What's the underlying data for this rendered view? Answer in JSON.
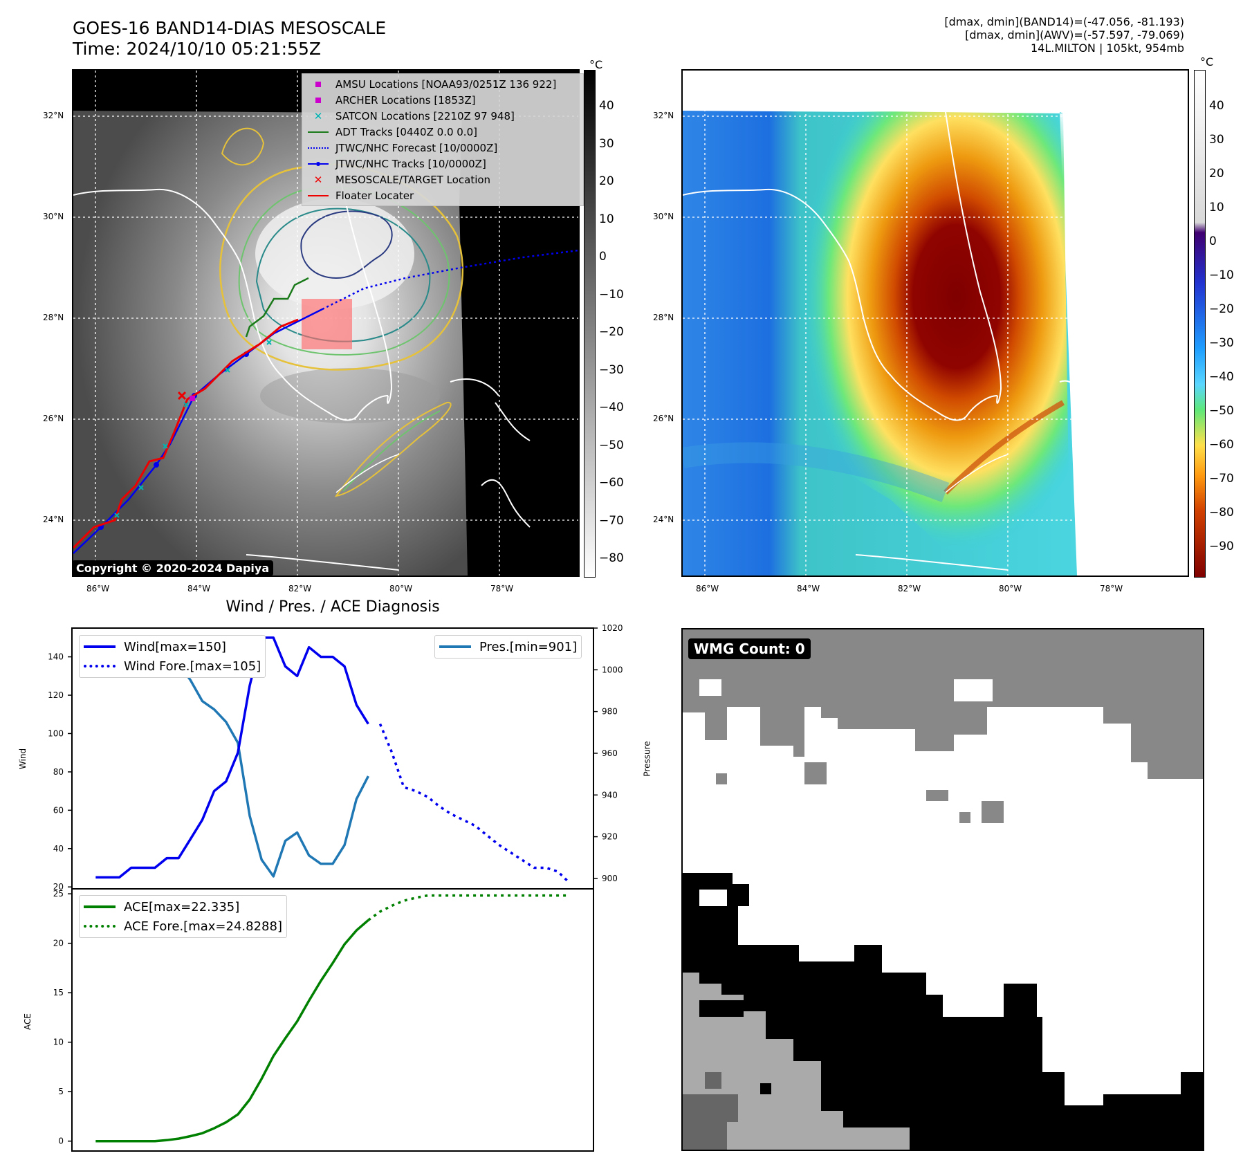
{
  "header": {
    "title_line1": "GOES-16 BAND14-DIAS MESOSCALE",
    "title_line2": "Time: 2024/10/10 05:21:55Z",
    "info_line1": "[dmax, dmin](BAND14)=(-47.056, -81.193)",
    "info_line2": "[dmax, dmin](AWV)=(-57.597, -79.069)",
    "info_line3": "14L.MILTON | 105kt, 954mb"
  },
  "map_axes": {
    "lat_labels": [
      "32°N",
      "30°N",
      "28°N",
      "26°N",
      "24°N"
    ],
    "lon_labels": [
      "86°W",
      "84°W",
      "82°W",
      "80°W",
      "78°W"
    ]
  },
  "colorbars": {
    "unit": "°C",
    "gray_ticks": [
      "40",
      "30",
      "20",
      "10",
      "0",
      "−10",
      "−20",
      "−30",
      "−40",
      "−50",
      "−60",
      "−70",
      "−80"
    ],
    "color_ticks": [
      "40",
      "30",
      "20",
      "10",
      "0",
      "−10",
      "−20",
      "−30",
      "−40",
      "−50",
      "−60",
      "−70",
      "−80",
      "−90"
    ]
  },
  "map_legend": {
    "items": [
      {
        "label": "AMSU Locations [NOAA93/0251Z 136 922]",
        "color": "#cc00cc",
        "symbol": "square"
      },
      {
        "label": "ARCHER Locations [1853Z]",
        "color": "#cc00cc",
        "symbol": "square"
      },
      {
        "label": "SATCON Locations [2210Z 97 948]",
        "color": "#00b3b3",
        "symbol": "x"
      },
      {
        "label": "ADT Tracks [0440Z 0.0 0.0]",
        "color": "#1a7a1a",
        "symbol": "line"
      },
      {
        "label": "JTWC/NHC Forecast [10/0000Z]",
        "color": "#0000ee",
        "symbol": "dotted"
      },
      {
        "label": "JTWC/NHC Tracks [10/0000Z]",
        "color": "#0000ee",
        "symbol": "dotline"
      },
      {
        "label": "MESOSCALE/TARGET Location",
        "color": "#ee0000",
        "symbol": "x"
      },
      {
        "label": "Floater Locater",
        "color": "#ee0000",
        "symbol": "line"
      }
    ]
  },
  "copyright": "Copyright © 2020-2024 Dapiya",
  "wmg": {
    "label": "WMG Count: 0"
  },
  "diagnosis": {
    "title": "Wind / Pres. / ACE Diagnosis",
    "wind_axis_label": "Wind",
    "pressure_axis_label": "Pressure",
    "ace_axis_label": "ACE",
    "legend_wind": "Wind[max=150]",
    "legend_wind_fore": "Wind Fore.[max=105]",
    "legend_pres": "Pres.[min=901]",
    "legend_ace": "ACE[max=22.335]",
    "legend_ace_fore": "ACE Fore.[max=24.8288]"
  },
  "chart_data": [
    {
      "type": "line",
      "title": "Wind / Pres. / ACE Diagnosis",
      "ylabel": "Wind",
      "ylim": [
        19,
        155
      ],
      "xlim": [
        -2,
        42
      ],
      "ticks": [
        20,
        40,
        60,
        80,
        100,
        120,
        140
      ],
      "tick_labels": [
        "20",
        "40",
        "60",
        "80",
        "100",
        "120",
        "140"
      ],
      "series": [
        {
          "name": "Wind[max=150]",
          "color": "#0000ee",
          "style": "solid",
          "x": [
            0,
            1,
            2,
            3,
            4,
            5,
            6,
            7,
            8,
            9,
            10,
            11,
            12,
            13,
            14,
            15,
            16,
            17,
            18,
            19,
            20,
            21,
            22,
            23,
            24
          ],
          "values": [
            25,
            25,
            25,
            30,
            30,
            30,
            35,
            35,
            45,
            55,
            70,
            75,
            90,
            125,
            150,
            150,
            135,
            130,
            145,
            140,
            140,
            135,
            115,
            105,
            null
          ]
        },
        {
          "name": "Wind Fore.[max=105]",
          "color": "#0000ee",
          "style": "dotted",
          "x": [
            24,
            25,
            26,
            27,
            28,
            29,
            30,
            31,
            32,
            33,
            34,
            35,
            36,
            37,
            38,
            39,
            40
          ],
          "values": [
            105,
            90,
            72,
            70,
            67,
            62,
            58,
            55,
            52,
            47,
            42,
            38,
            34,
            30,
            30,
            28,
            22
          ]
        }
      ]
    },
    {
      "type": "line",
      "ylabel": "Pressure",
      "ylim": [
        895,
        1020
      ],
      "ticks": [
        900,
        920,
        940,
        960,
        980,
        1000,
        1020
      ],
      "tick_labels": [
        "900",
        "920",
        "940",
        "960",
        "980",
        "1000",
        "1020"
      ],
      "series": [
        {
          "name": "Pres.[min=901]",
          "color": "#1f77b4",
          "style": "solid",
          "x": [
            0,
            1,
            2,
            3,
            4,
            5,
            6,
            7,
            8,
            9,
            10,
            11,
            12,
            13,
            14,
            15,
            16,
            17,
            18,
            19,
            20,
            21,
            22,
            23
          ],
          "values": [
            1010,
            1010,
            1010,
            1006,
            1006,
            1004,
            1003,
            1003,
            995,
            985,
            981,
            975,
            965,
            930,
            909,
            901,
            918,
            922,
            911,
            907,
            907,
            916,
            938,
            949
          ]
        }
      ]
    },
    {
      "type": "line",
      "ylabel": "ACE",
      "ylim": [
        -1,
        25.5
      ],
      "ticks": [
        0,
        5,
        10,
        15,
        20,
        25
      ],
      "tick_labels": [
        "0",
        "5",
        "10",
        "15",
        "20",
        "25"
      ],
      "series": [
        {
          "name": "ACE[max=22.335]",
          "color": "#008000",
          "style": "solid",
          "x": [
            0,
            1,
            2,
            3,
            4,
            5,
            6,
            7,
            8,
            9,
            10,
            11,
            12,
            13,
            14,
            15,
            16,
            17,
            18,
            19,
            20,
            21,
            22,
            23
          ],
          "values": [
            0,
            0,
            0,
            0,
            0,
            0,
            0.1,
            0.25,
            0.5,
            0.8,
            1.3,
            1.9,
            2.7,
            4.2,
            6.3,
            8.6,
            10.4,
            12.1,
            14.2,
            16.2,
            18.0,
            19.9,
            21.3,
            22.335
          ]
        },
        {
          "name": "ACE Fore.[max=24.8288]",
          "color": "#008000",
          "style": "dotted",
          "x": [
            23,
            24,
            25,
            26,
            27,
            28,
            29,
            30,
            31,
            32,
            33,
            34,
            35,
            36,
            37,
            38,
            39,
            40
          ],
          "values": [
            22.335,
            23.2,
            23.8,
            24.3,
            24.6,
            24.8288,
            24.8288,
            24.8288,
            24.8288,
            24.8288,
            24.8288,
            24.8288,
            24.8288,
            24.8288,
            24.8288,
            24.8288,
            24.8288,
            24.8288
          ]
        }
      ]
    }
  ]
}
